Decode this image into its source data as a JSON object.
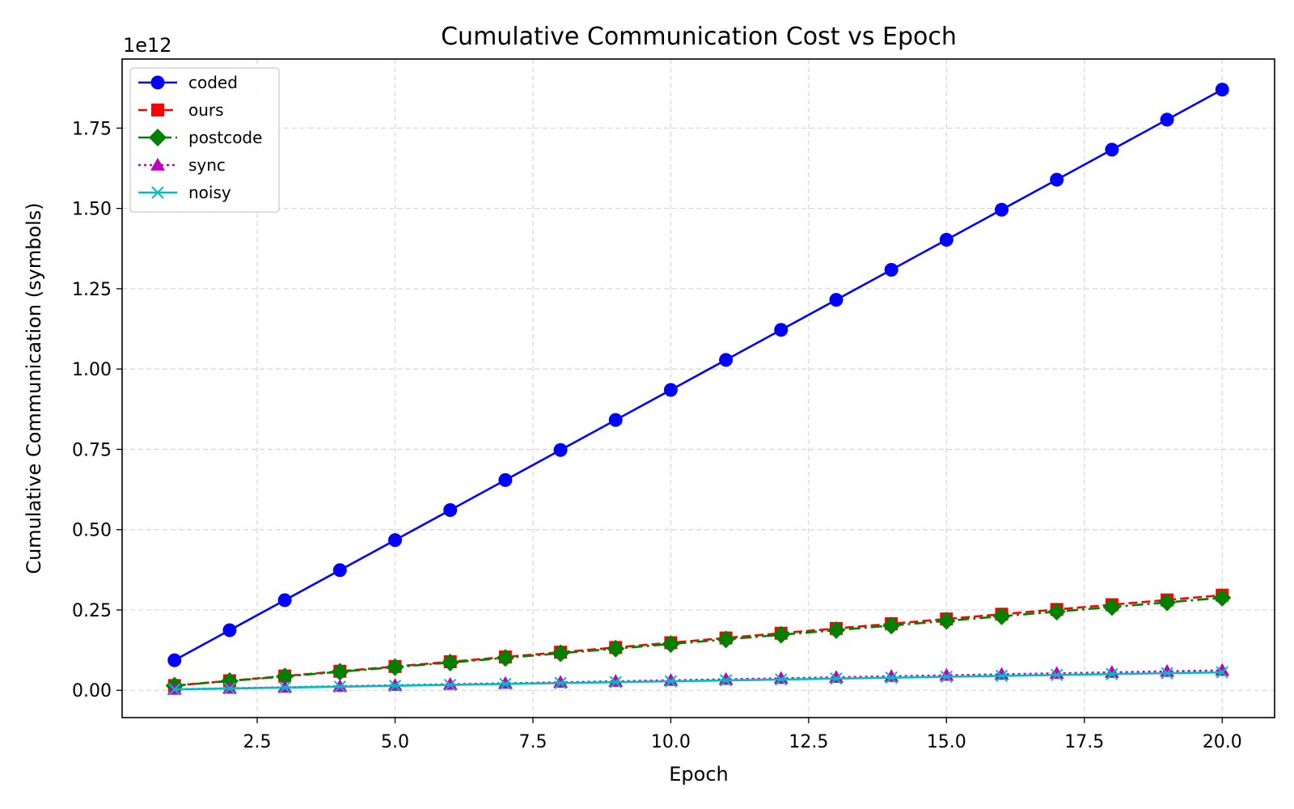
{
  "chart_data": {
    "type": "line",
    "title": "Cumulative Communication Cost vs Epoch",
    "xlabel": "Epoch",
    "ylabel": "Cumulative Communication (symbols)",
    "y_offset_label": "1e12",
    "xlim": [
      0.05,
      20.95
    ],
    "ylim": [
      -0.085,
      1.965
    ],
    "x_ticks": [
      2.5,
      5.0,
      7.5,
      10.0,
      12.5,
      15.0,
      17.5,
      20.0
    ],
    "x_tick_labels": [
      "2.5",
      "5.0",
      "7.5",
      "10.0",
      "12.5",
      "15.0",
      "17.5",
      "20.0"
    ],
    "y_ticks": [
      0.0,
      0.25,
      0.5,
      0.75,
      1.0,
      1.25,
      1.5,
      1.75
    ],
    "y_tick_labels": [
      "0.00",
      "0.25",
      "0.50",
      "0.75",
      "1.00",
      "1.25",
      "1.50",
      "1.75"
    ],
    "grid": true,
    "legend_position": "top-left",
    "x": [
      1,
      2,
      3,
      4,
      5,
      6,
      7,
      8,
      9,
      10,
      11,
      12,
      13,
      14,
      15,
      16,
      17,
      18,
      19,
      20
    ],
    "series": [
      {
        "name": "coded",
        "color": "#0000ff",
        "marker": "circle",
        "linestyle": "solid",
        "values": [
          0.0935,
          0.187,
          0.2805,
          0.374,
          0.4675,
          0.561,
          0.6545,
          0.748,
          0.8415,
          0.935,
          1.0285,
          1.122,
          1.2155,
          1.309,
          1.4025,
          1.496,
          1.5895,
          1.683,
          1.7765,
          1.87
        ]
      },
      {
        "name": "ours",
        "color": "#ff0000",
        "marker": "square",
        "linestyle": "dashed",
        "values": [
          0.0148,
          0.0296,
          0.0444,
          0.0592,
          0.074,
          0.0888,
          0.1036,
          0.1184,
          0.1332,
          0.148,
          0.1628,
          0.1776,
          0.1924,
          0.2072,
          0.222,
          0.2368,
          0.2516,
          0.2664,
          0.2812,
          0.296
        ]
      },
      {
        "name": "postcode",
        "color": "#008000",
        "marker": "diamond",
        "linestyle": "dashdot",
        "values": [
          0.0144,
          0.0288,
          0.0432,
          0.0576,
          0.072,
          0.0864,
          0.1008,
          0.1152,
          0.1296,
          0.144,
          0.1584,
          0.1728,
          0.1872,
          0.2016,
          0.216,
          0.2304,
          0.2448,
          0.2592,
          0.2736,
          0.288
        ]
      },
      {
        "name": "sync",
        "color": "#bf00bf",
        "marker": "triangle",
        "linestyle": "dotted",
        "values": [
          0.0031,
          0.0062,
          0.0093,
          0.0124,
          0.0155,
          0.0186,
          0.0217,
          0.0248,
          0.0279,
          0.031,
          0.0341,
          0.0372,
          0.0403,
          0.0434,
          0.0465,
          0.0496,
          0.0527,
          0.0558,
          0.0589,
          0.062
        ]
      },
      {
        "name": "noisy",
        "color": "#00bfbf",
        "marker": "x",
        "linestyle": "solid",
        "values": [
          0.0028,
          0.0056,
          0.0084,
          0.0112,
          0.014,
          0.0168,
          0.0196,
          0.0224,
          0.0252,
          0.028,
          0.0308,
          0.0336,
          0.0364,
          0.0392,
          0.042,
          0.0448,
          0.0476,
          0.0504,
          0.0532,
          0.056
        ]
      }
    ]
  }
}
